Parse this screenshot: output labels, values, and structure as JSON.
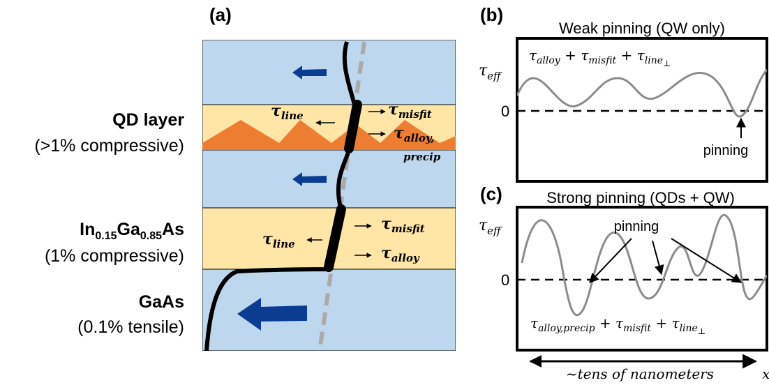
{
  "panel_a": {
    "label": "(a)",
    "layer_labels": {
      "qd_title": "QD layer",
      "qd_sub": "(>1% compressive)",
      "ingaas_base1": "In",
      "ingaas_sub1": "0.15",
      "ingaas_base2": "Ga",
      "ingaas_sub2": "0.85",
      "ingaas_base3": "As",
      "ingaas_sub": "(1% compressive)",
      "gaas_title": "GaAs",
      "gaas_sub": "(0.1% tensile)"
    },
    "qd_layer": {
      "tau": "τ",
      "line_sub": "line",
      "misfit_sub": "misfit",
      "alloy_sub": "alloy,",
      "precip_sub": "precip"
    },
    "qw_layer": {
      "tau": "τ",
      "line_sub": "line",
      "misfit_sub": "misfit",
      "alloy_sub": "alloy"
    },
    "colors": {
      "gaas": "#bdd7ee",
      "qw": "#ffe6a6",
      "qd": "#ed7d31",
      "arrow": "#0a3d91",
      "dislocation": "#000000",
      "dashed_line": "#aaaaaa"
    }
  },
  "panel_b": {
    "label": "(b)",
    "title": "Weak pinning (QW only)",
    "ylabel_tau": "τ",
    "ylabel_sub": "eff",
    "zero_label": "0",
    "formula": {
      "t1": "τ",
      "s1": "alloy",
      "plus1": " + ",
      "t2": "τ",
      "s2": "misfit",
      "plus2": " + ",
      "t3": "τ",
      "s3": "line",
      "perp": "⊥"
    },
    "annotation": "pinning"
  },
  "panel_c": {
    "label": "(c)",
    "title": "Strong pinning (QDs + QW)",
    "ylabel_tau": "τ",
    "ylabel_sub": "eff",
    "zero_label": "0",
    "formula": {
      "t1": "τ",
      "s1": "alloy,precip",
      "plus1": " + ",
      "t2": "τ",
      "s2": "misfit",
      "plus2": " + ",
      "t3": "τ",
      "s3": "line",
      "perp": "⊥"
    },
    "annotation": "pinning"
  },
  "x_axis": {
    "label": "~tens of nanometers",
    "var": "x"
  }
}
